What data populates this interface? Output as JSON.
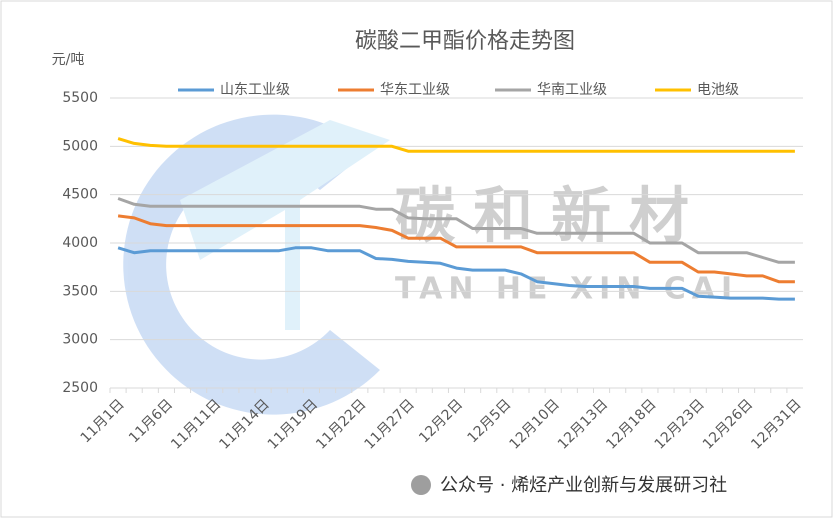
{
  "chart_data": {
    "type": "line",
    "title": "碳酸二甲酯价格走势图",
    "y_unit": "元/吨",
    "watermark": "碳和新材",
    "watermark_sub": "TAN HE XIN CAI",
    "footer": "公众号 · 烯烃产业创新与发展研习社",
    "categories": [
      "11月1日",
      null,
      null,
      "11月6日",
      null,
      null,
      "11月11日",
      null,
      null,
      "11月14日",
      null,
      null,
      "11月19日",
      null,
      null,
      "11月22日",
      null,
      null,
      "11月27日",
      null,
      null,
      "12月2日",
      null,
      null,
      "12月5日",
      null,
      null,
      "12月10日",
      null,
      null,
      "12月13日",
      null,
      null,
      "12月18日",
      null,
      null,
      "12月23日",
      null,
      null,
      "12月26日",
      null,
      null,
      "12月31日"
    ],
    "ylim": [
      2500,
      5500
    ],
    "yticks": [
      2500,
      3000,
      3500,
      4000,
      4500,
      5000,
      5500
    ],
    "legend": "top",
    "series": [
      {
        "name": "山东工业级",
        "color": "#5b9bd5",
        "values": [
          3950,
          3900,
          3920,
          3920,
          3920,
          3920,
          3920,
          3920,
          3920,
          3920,
          3920,
          3950,
          3950,
          3920,
          3920,
          3920,
          3840,
          3830,
          3810,
          3800,
          3790,
          3740,
          3720,
          3720,
          3720,
          3680,
          3600,
          3580,
          3560,
          3550,
          3550,
          3550,
          3550,
          3530,
          3530,
          3530,
          3450,
          3440,
          3430,
          3430,
          3430,
          3420,
          3420
        ]
      },
      {
        "name": "华东工业级",
        "color": "#ed7d31",
        "values": [
          4280,
          4260,
          4200,
          4180,
          4180,
          4180,
          4180,
          4180,
          4180,
          4180,
          4180,
          4180,
          4180,
          4180,
          4180,
          4180,
          4160,
          4130,
          4050,
          4050,
          4050,
          3960,
          3960,
          3960,
          3960,
          3960,
          3900,
          3900,
          3900,
          3900,
          3900,
          3900,
          3900,
          3800,
          3800,
          3800,
          3700,
          3700,
          3680,
          3660,
          3660,
          3600,
          3600
        ]
      },
      {
        "name": "华南工业级",
        "color": "#a5a5a5",
        "values": [
          4460,
          4400,
          4380,
          4380,
          4380,
          4380,
          4380,
          4380,
          4380,
          4380,
          4380,
          4380,
          4380,
          4380,
          4380,
          4380,
          4350,
          4350,
          4260,
          4250,
          4250,
          4250,
          4150,
          4150,
          4150,
          4150,
          4100,
          4100,
          4100,
          4100,
          4100,
          4100,
          4100,
          4000,
          4000,
          4000,
          3900,
          3900,
          3900,
          3900,
          3850,
          3800,
          3800
        ]
      },
      {
        "name": "电池级",
        "color": "#ffc000",
        "values": [
          5080,
          5030,
          5010,
          5000,
          5000,
          5000,
          5000,
          5000,
          5000,
          5000,
          5000,
          5000,
          5000,
          5000,
          5000,
          5000,
          5000,
          5000,
          4950,
          4950,
          4950,
          4950,
          4950,
          4950,
          4950,
          4950,
          4950,
          4950,
          4950,
          4950,
          4950,
          4950,
          4950,
          4950,
          4950,
          4950,
          4950,
          4950,
          4950,
          4950,
          4950,
          4950,
          4950
        ]
      }
    ]
  }
}
